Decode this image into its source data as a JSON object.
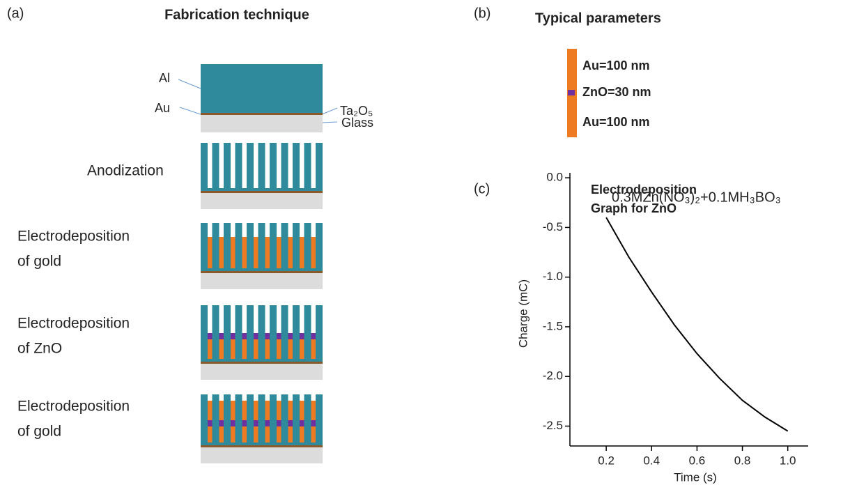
{
  "panel_a": {
    "label": "(a)",
    "title": "Fabrication technique",
    "layers": {
      "al": "Al",
      "au": "Au",
      "oxide": "Ta₂O₅",
      "glass": "Glass"
    },
    "steps": [
      [
        "Anodization"
      ],
      [
        "Electrodeposition",
        "of gold"
      ],
      [
        "Electrodeposition",
        "of ZnO"
      ],
      [
        "Electrodeposition",
        "of gold"
      ]
    ]
  },
  "panel_b": {
    "label": "(b)",
    "title": "Typical parameters",
    "layers": [
      "Au=100 nm",
      "ZnO=30 nm",
      "Au=100 nm"
    ]
  },
  "panel_c": {
    "label": "(c)"
  },
  "chart_data": {
    "type": "line",
    "title": [
      "Electrodeposition",
      "Graph for ZnO"
    ],
    "annotation": "0.3MZn(NO₃)₂+0.1MH₃BO₃",
    "x_label": "Time (s)",
    "y_label": "Charge (mC)",
    "color": "#000000",
    "x": [
      0.2,
      0.3,
      0.4,
      0.5,
      0.6,
      0.7,
      0.8,
      0.9,
      1.0
    ],
    "values": [
      -0.4,
      -0.8,
      -1.15,
      -1.48,
      -1.77,
      -2.02,
      -2.24,
      -2.41,
      -2.55
    ],
    "xlim": [
      0.04,
      1.09
    ],
    "ylim": [
      -2.7,
      0.05
    ],
    "xticks": [
      0.2,
      0.4,
      0.6,
      0.8,
      {
        "value": 1,
        "label": "1.0"
      }
    ],
    "yticks": [
      {
        "value": 0,
        "label": "0.0"
      },
      -0.5,
      {
        "value": -1,
        "label": "-1.0"
      },
      -1.5,
      {
        "value": -2,
        "label": "-2.0"
      },
      -2.5
    ]
  }
}
